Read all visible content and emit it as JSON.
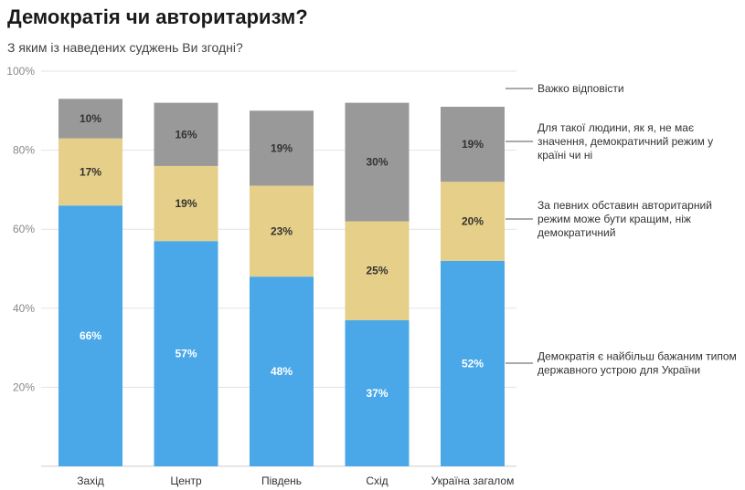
{
  "title": "Демократія чи авторитаризм?",
  "subtitle": "З яким із наведених суджень Ви згодні?",
  "colors": {
    "democracy": "#4aa8e8",
    "authoritarian": "#e6cf88",
    "no_matter": "#999999",
    "hard_to_say": "#ffffff",
    "grid": "#e3e3e3",
    "text": "#444444"
  },
  "chart_data": {
    "type": "bar",
    "stacked": true,
    "categories": [
      "Захід",
      "Центр",
      "Південь",
      "Схід",
      "Україна загалом"
    ],
    "ylim": [
      0,
      100
    ],
    "yticks": [
      "20%",
      "40%",
      "60%",
      "80%",
      "100%"
    ],
    "ytick_values": [
      20,
      40,
      60,
      80,
      100
    ],
    "grid": true,
    "legend_placement": "right",
    "series": [
      {
        "name": "Демократія є найбільш бажаним типом державного устрою для України",
        "values": [
          66,
          57,
          48,
          37,
          52
        ],
        "labels": [
          "66%",
          "57%",
          "48%",
          "37%",
          "52%"
        ]
      },
      {
        "name": "За певних обставин авторитарний режим може бути кращим, ніж демократичний",
        "values": [
          17,
          19,
          23,
          25,
          20
        ],
        "labels": [
          "17%",
          "19%",
          "23%",
          "25%",
          "20%"
        ]
      },
      {
        "name": "Для такої людини, як я, не має значення, демократичний режим у країні чи ні",
        "values": [
          10,
          16,
          19,
          30,
          19
        ],
        "labels": [
          "10%",
          "16%",
          "19%",
          "30%",
          "19%"
        ]
      },
      {
        "name": "Важко відповісти",
        "values": [
          7,
          8,
          10,
          8,
          8
        ],
        "labels": [
          "",
          "",
          "",
          "",
          ""
        ]
      }
    ],
    "legend_lines": [
      [
        "Важко відповісти"
      ],
      [
        "Для такої людини, як я, не має",
        "значення, демократичний режим у",
        "країні чи ні"
      ],
      [
        "За певних обставин авторитарний",
        "режим може бути кращим, ніж",
        "демократичний"
      ],
      [
        "Демократія є найбільш бажаним типом",
        "державного устрою для України"
      ]
    ]
  }
}
